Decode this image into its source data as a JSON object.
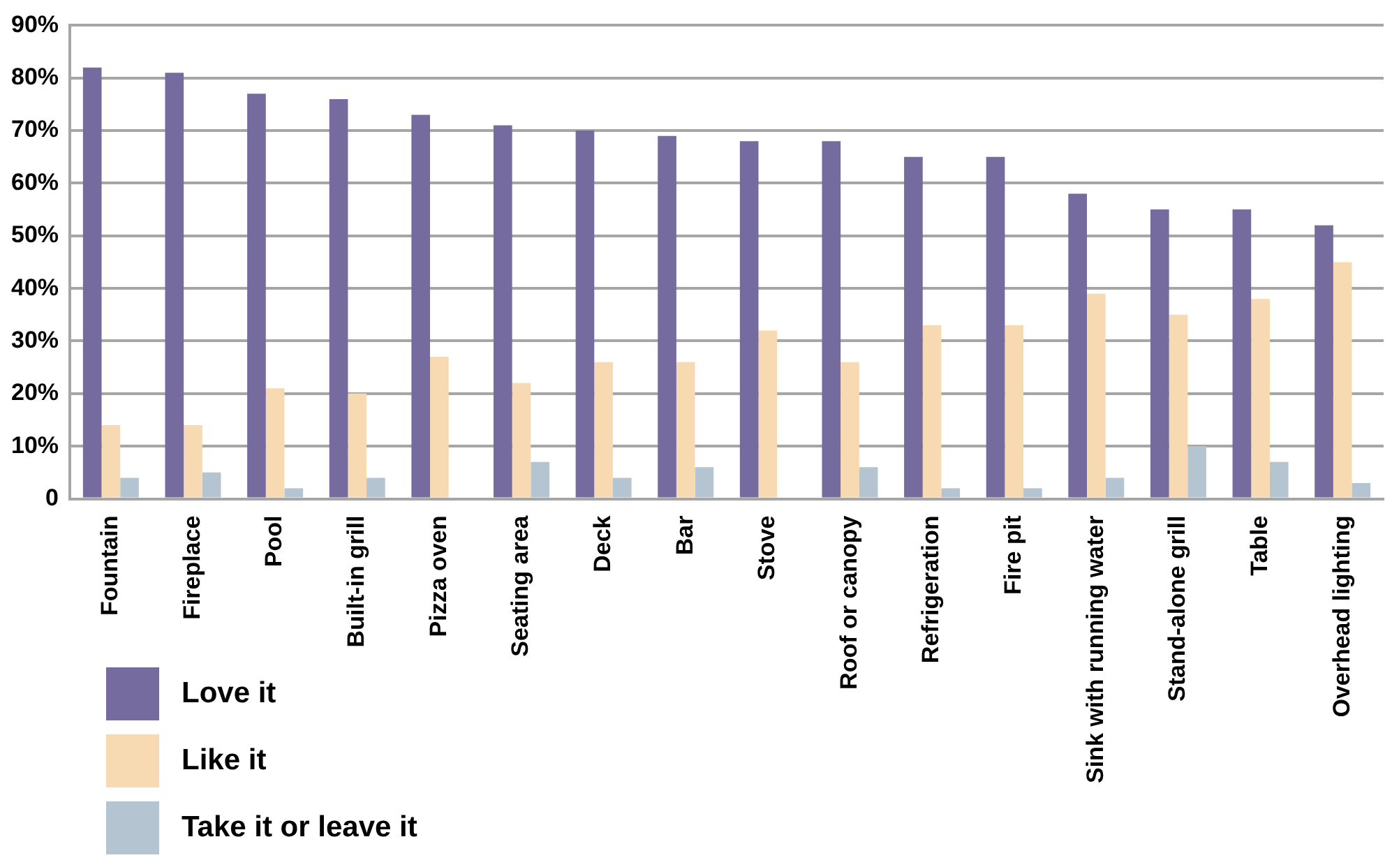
{
  "chart_data": {
    "type": "bar",
    "categories": [
      "Fountain",
      "Fireplace",
      "Pool",
      "Built-in grill",
      "Pizza oven",
      "Seating area",
      "Deck",
      "Bar",
      "Stove",
      "Roof or canopy",
      "Refrigeration",
      "Fire pit",
      "Sink with running water",
      "Stand-alone grill",
      "Table",
      "Overhead lighting"
    ],
    "series": [
      {
        "name": "Love it",
        "color": "#756b9e",
        "values": [
          82,
          81,
          77,
          76,
          73,
          71,
          70,
          69,
          68,
          68,
          65,
          65,
          58,
          55,
          55,
          52
        ]
      },
      {
        "name": "Like it",
        "color": "#f7dab1",
        "values": [
          14,
          14,
          21,
          20,
          27,
          22,
          26,
          26,
          32,
          26,
          33,
          33,
          39,
          35,
          38,
          45
        ]
      },
      {
        "name": "Take it or leave it",
        "color": "#b4c4d0",
        "values": [
          4,
          5,
          2,
          4,
          0,
          7,
          4,
          6,
          0,
          6,
          2,
          2,
          4,
          10,
          7,
          3
        ]
      }
    ],
    "ylim": [
      0,
      90
    ],
    "yticks": [
      {
        "value": 0,
        "label": "0"
      },
      {
        "value": 10,
        "label": "10%"
      },
      {
        "value": 20,
        "label": "20%"
      },
      {
        "value": 30,
        "label": "30%"
      },
      {
        "value": 40,
        "label": "40%"
      },
      {
        "value": 50,
        "label": "50%"
      },
      {
        "value": 60,
        "label": "60%"
      },
      {
        "value": 70,
        "label": "70%"
      },
      {
        "value": 80,
        "label": "80%"
      },
      {
        "value": 90,
        "label": "90%"
      }
    ],
    "grid": "y",
    "legend": "bottom left"
  }
}
